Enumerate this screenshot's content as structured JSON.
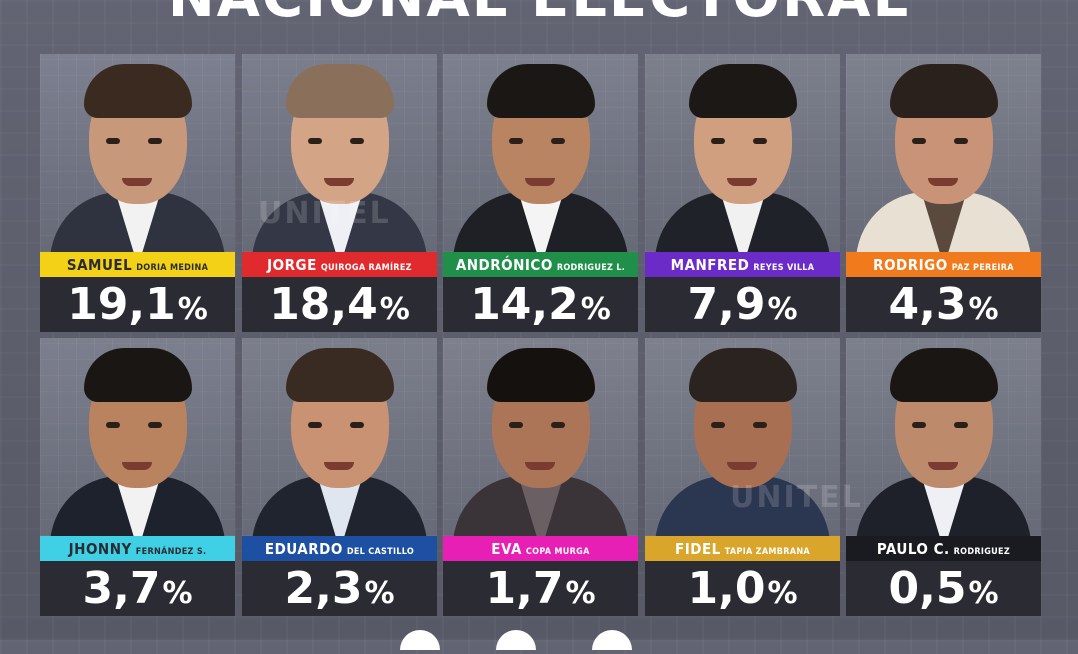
{
  "header": {
    "title": "NACIONAL ELECTORAL"
  },
  "watermark": "UNITEL",
  "percent_symbol": "%",
  "candidates": [
    {
      "first": "SAMUEL",
      "last": "DORIA MEDINA",
      "pct": "19,1",
      "bar_color": "#f2d117",
      "first_color": "#2b2c33",
      "last_color": "#2b2c33",
      "photo_bg": "#7d8090",
      "skin": "#c8987a",
      "hair": "#3a2a1f",
      "suit": "#2f3340",
      "shirt": "#f2f2f2"
    },
    {
      "first": "JORGE",
      "last": "QUIROGA RAMÍREZ",
      "pct": "18,4",
      "bar_color": "#e02a2e",
      "first_color": "#ffffff",
      "last_color": "#ffffff",
      "photo_bg": "#7b7e8c",
      "skin": "#d3a485",
      "hair": "#8a6f5a",
      "suit": "#343846",
      "shirt": "#eef0f5"
    },
    {
      "first": "ANDRÓNICO",
      "last": "RODRIGUEZ L.",
      "pct": "14,2",
      "bar_color": "#1f8f4a",
      "first_color": "#ffffff",
      "last_color": "#ffffff",
      "photo_bg": "#7d808e",
      "skin": "#b98462",
      "hair": "#1b1715",
      "suit": "#1e2026",
      "shirt": "#f4f4f4"
    },
    {
      "first": "MANFRED",
      "last": "REYES VILLA",
      "pct": "7,9",
      "bar_color": "#6a2bc9",
      "first_color": "#ffffff",
      "last_color": "#ffffff",
      "photo_bg": "#7c7f8c",
      "skin": "#cf9f80",
      "hair": "#1c1816",
      "suit": "#20222a",
      "shirt": "#f1f1f1"
    },
    {
      "first": "RODRIGO",
      "last": "PAZ PEREIRA",
      "pct": "4,3",
      "bar_color": "#f07a1c",
      "first_color": "#ffffff",
      "last_color": "#ffffff",
      "photo_bg": "#7e818e",
      "skin": "#c99377",
      "hair": "#2a211c",
      "suit": "#e8e0d2",
      "shirt": "#5a4a3d"
    },
    {
      "first": "JHONNY",
      "last": "FERNÁNDEZ S.",
      "pct": "3,7",
      "bar_color": "#3fd0e6",
      "first_color": "#2b2c33",
      "last_color": "#2b2c33",
      "photo_bg": "#7c7f8d",
      "skin": "#b98360",
      "hair": "#1a1614",
      "suit": "#1d222d",
      "shirt": "#f2f2f2"
    },
    {
      "first": "EDUARDO",
      "last": "DEL CASTILLO",
      "pct": "2,3",
      "bar_color": "#1d4fa3",
      "first_color": "#ffffff",
      "last_color": "#ffffff",
      "photo_bg": "#7b7e8b",
      "skin": "#c99272",
      "hair": "#3a2b22",
      "suit": "#20242e",
      "shirt": "#dfe6f0"
    },
    {
      "first": "EVA",
      "last": "COPA MURGA",
      "pct": "1,7",
      "bar_color": "#e81fb4",
      "first_color": "#ffffff",
      "last_color": "#ffffff",
      "photo_bg": "#7e808d",
      "skin": "#ad7558",
      "hair": "#15110f",
      "suit": "#3a3438",
      "shirt": "#6a5f63"
    },
    {
      "first": "FIDEL",
      "last": "TAPIA ZAMBRANA",
      "pct": "1,0",
      "bar_color": "#d9a52b",
      "first_color": "#ffffff",
      "last_color": "#ffffff",
      "photo_bg": "#7d808d",
      "skin": "#a96f52",
      "hair": "#2a2320",
      "suit": "#2b3650",
      "shirt": "#2b3650"
    },
    {
      "first": "PAULO C.",
      "last": "RODRIGUEZ",
      "pct": "0,5",
      "bar_color": "#1a1b20",
      "first_color": "#ffffff",
      "last_color": "#ffffff",
      "photo_bg": "#7c7f8c",
      "skin": "#be8a6c",
      "hair": "#191614",
      "suit": "#1e2129",
      "shirt": "#eef0f5"
    }
  ]
}
